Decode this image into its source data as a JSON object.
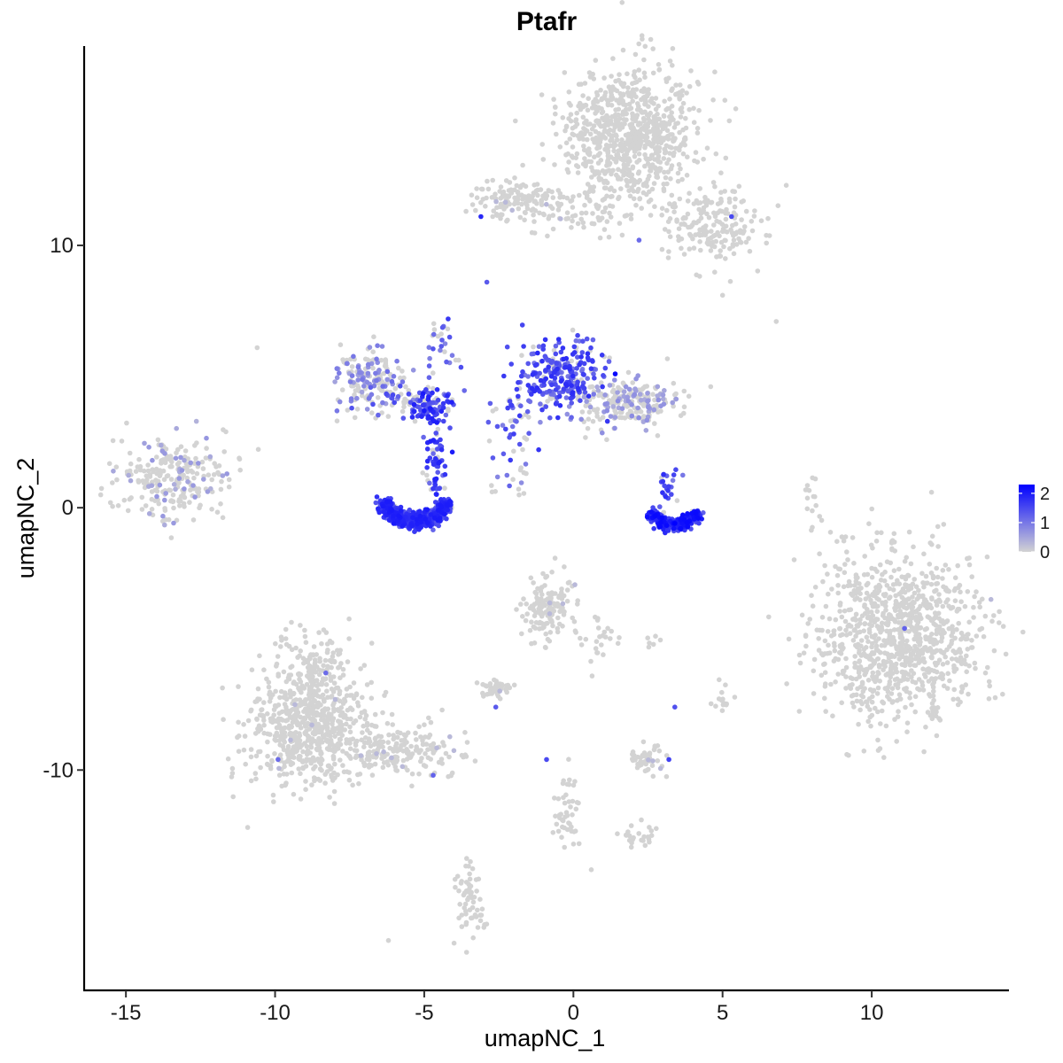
{
  "chart_data": {
    "type": "scatter",
    "title": "Ptafr",
    "xlabel": "umapNC_1",
    "ylabel": "umapNC_2",
    "xlim": [
      -16.4,
      14.6
    ],
    "ylim": [
      -18.4,
      17.6
    ],
    "x_ticks": [
      -15,
      -10,
      -5,
      0,
      5,
      10
    ],
    "x_tick_labels": [
      "-15",
      "-10",
      "-5",
      "0",
      "5",
      "10"
    ],
    "y_ticks": [
      -10,
      0,
      10
    ],
    "y_tick_labels": [
      "-10",
      "0",
      "10"
    ],
    "grid": false,
    "legend": {
      "position": "right",
      "type": "colorbar",
      "range": [
        0,
        2.3
      ],
      "ticks": [
        0,
        1,
        2
      ],
      "tick_labels": [
        "0",
        "1",
        "2"
      ],
      "color_low": "#d3d3d3",
      "color_high": "#0000ff"
    },
    "clusters": [
      {
        "x": 1.9,
        "y": 14.2,
        "sx": 1.1,
        "sy": 1.3,
        "n": 800,
        "expr": 0,
        "p": 0
      },
      {
        "x": 4.8,
        "y": 10.8,
        "sx": 0.8,
        "sy": 0.8,
        "n": 180,
        "expr": 0,
        "p": 0.01
      },
      {
        "x": -1.8,
        "y": 11.7,
        "sx": 0.9,
        "sy": 0.4,
        "n": 140,
        "expr": 0,
        "p": 0.02
      },
      {
        "x": 0.8,
        "y": 11.2,
        "sx": 1.2,
        "sy": 0.4,
        "n": 60,
        "expr": 0,
        "p": 0
      },
      {
        "x": -13.4,
        "y": 1.1,
        "sx": 0.9,
        "sy": 0.8,
        "n": 260,
        "expr": 0.5,
        "p": 0.15
      },
      {
        "x": -6.8,
        "y": 5.0,
        "sx": 0.55,
        "sy": 0.55,
        "n": 140,
        "expr": 0.8,
        "p": 0.45
      },
      {
        "x": -5.5,
        "y": 4.1,
        "sx": 0.8,
        "sy": 0.4,
        "n": 80,
        "expr": 1.3,
        "p": 0.5
      },
      {
        "x": -4.8,
        "y": 3.8,
        "sx": 0.35,
        "sy": 0.3,
        "n": 80,
        "expr": 1.8,
        "p": 0.85
      },
      {
        "x": -4.6,
        "y": 1.6,
        "sx": 0.25,
        "sy": 0.9,
        "n": 60,
        "expr": 1.8,
        "p": 0.85
      },
      {
        "x": -4.4,
        "y": 6.5,
        "sx": 0.4,
        "sy": 0.6,
        "n": 25,
        "expr": 1.4,
        "p": 0.6
      },
      {
        "x": -0.5,
        "y": 5.0,
        "sx": 0.7,
        "sy": 0.75,
        "n": 260,
        "expr": 1.6,
        "p": 0.8
      },
      {
        "x": 1.9,
        "y": 4.0,
        "sx": 0.9,
        "sy": 0.45,
        "n": 230,
        "expr": 0.6,
        "p": 0.3
      },
      {
        "x": -2.0,
        "y": 3.0,
        "sx": 0.4,
        "sy": 0.7,
        "n": 40,
        "expr": 1.5,
        "p": 0.7
      },
      {
        "x": -1.8,
        "y": 0.9,
        "sx": 0.45,
        "sy": 0.3,
        "n": 14,
        "expr": 1.2,
        "p": 0.5
      },
      {
        "x": 3.2,
        "y": 0.7,
        "sx": 0.2,
        "sy": 0.4,
        "n": 20,
        "expr": 1.6,
        "p": 0.8
      },
      {
        "x": 8.0,
        "y": 0.3,
        "sx": 0.15,
        "sy": 0.5,
        "n": 16,
        "expr": 0,
        "p": 0
      },
      {
        "x": 10.9,
        "y": -4.9,
        "sx": 1.35,
        "sy": 1.55,
        "n": 1000,
        "expr": 0,
        "p": 0.002
      },
      {
        "x": -0.9,
        "y": -3.7,
        "sx": 0.45,
        "sy": 0.55,
        "n": 140,
        "expr": 0,
        "p": 0.02
      },
      {
        "x": 0.8,
        "y": -4.9,
        "sx": 0.3,
        "sy": 0.6,
        "n": 25,
        "expr": 0,
        "p": 0
      },
      {
        "x": -8.8,
        "y": -8.4,
        "sx": 1.0,
        "sy": 1.1,
        "n": 650,
        "expr": 0,
        "p": 0.01
      },
      {
        "x": -8.7,
        "y": -6.2,
        "sx": 0.5,
        "sy": 0.8,
        "n": 120,
        "expr": 0,
        "p": 0.01
      },
      {
        "x": -5.9,
        "y": -9.3,
        "sx": 1.0,
        "sy": 0.45,
        "n": 180,
        "expr": 0,
        "p": 0.02
      },
      {
        "x": -2.6,
        "y": -6.9,
        "sx": 0.3,
        "sy": 0.2,
        "n": 45,
        "expr": 0,
        "p": 0.03
      },
      {
        "x": 2.4,
        "y": -9.6,
        "sx": 0.35,
        "sy": 0.25,
        "n": 50,
        "expr": 0,
        "p": 0.05
      },
      {
        "x": -0.2,
        "y": -11.5,
        "sx": 0.25,
        "sy": 0.65,
        "n": 45,
        "expr": 0,
        "p": 0
      },
      {
        "x": 2.2,
        "y": -12.5,
        "sx": 0.3,
        "sy": 0.25,
        "n": 25,
        "expr": 0,
        "p": 0
      },
      {
        "x": -3.5,
        "y": -15.0,
        "sx": 0.25,
        "sy": 0.8,
        "n": 60,
        "expr": 0,
        "p": 0
      },
      {
        "x": 5.0,
        "y": -7.3,
        "sx": 0.2,
        "sy": 0.25,
        "n": 14,
        "expr": 0,
        "p": 0
      },
      {
        "x": 2.8,
        "y": -5.1,
        "sx": 0.15,
        "sy": 0.1,
        "n": 6,
        "expr": 0,
        "p": 0
      }
    ],
    "arcs": [
      {
        "cx": -5.3,
        "cy": 0.2,
        "rx": 0.95,
        "ry": 0.85,
        "n": 700,
        "expr": 1.8,
        "p": 0.92
      },
      {
        "cx": 3.4,
        "cy": -0.2,
        "rx": 0.65,
        "ry": 0.55,
        "n": 300,
        "expr": 2.0,
        "p": 0.95
      }
    ],
    "points": [
      {
        "x": -10.6,
        "y": 6.1,
        "v": 0
      },
      {
        "x": 6.8,
        "y": 7.1,
        "v": 0
      },
      {
        "x": 5.0,
        "y": 8.1,
        "v": 0
      },
      {
        "x": -3.0,
        "y": -16.0,
        "v": 0
      },
      {
        "x": -6.2,
        "y": -16.5,
        "v": 0
      },
      {
        "x": -4.0,
        "y": -16.6,
        "v": 0
      },
      {
        "x": 0.6,
        "y": -13.8,
        "v": 0
      },
      {
        "x": -2.9,
        "y": 8.6,
        "v": 1.2
      },
      {
        "x": -3.1,
        "y": 11.1,
        "v": 1.8
      },
      {
        "x": -3.6,
        "y": 11.3,
        "v": 0
      },
      {
        "x": 5.3,
        "y": 11.1,
        "v": 1.4
      },
      {
        "x": 2.2,
        "y": 10.2,
        "v": 1.0
      },
      {
        "x": -2.7,
        "y": 1.9,
        "v": 1.2
      },
      {
        "x": -4.2,
        "y": 7.2,
        "v": 1.6
      },
      {
        "x": 11.1,
        "y": -4.6,
        "v": 1.1
      },
      {
        "x": 3.4,
        "y": -7.6,
        "v": 1.3
      },
      {
        "x": 3.2,
        "y": -9.6,
        "v": 1.5
      },
      {
        "x": -2.6,
        "y": -7.6,
        "v": 1.2
      },
      {
        "x": -9.9,
        "y": -9.6,
        "v": 1.0
      },
      {
        "x": -4.7,
        "y": -10.2,
        "v": 1.1
      },
      {
        "x": -0.9,
        "y": -9.6,
        "v": 1.4
      },
      {
        "x": -8.3,
        "y": -6.3,
        "v": 1.0
      },
      {
        "x": -1.2,
        "y": 5.9,
        "v": 1.8
      },
      {
        "x": -2.2,
        "y": 3.8,
        "v": 1.5
      },
      {
        "x": 3.0,
        "y": 1.0,
        "v": 1.6
      },
      {
        "x": 3.4,
        "y": -0.6,
        "v": 2.4
      },
      {
        "x": -5.0,
        "y": 3.7,
        "v": 2.0
      },
      {
        "x": 1.4,
        "y": 5.1,
        "v": 2.2
      }
    ]
  }
}
